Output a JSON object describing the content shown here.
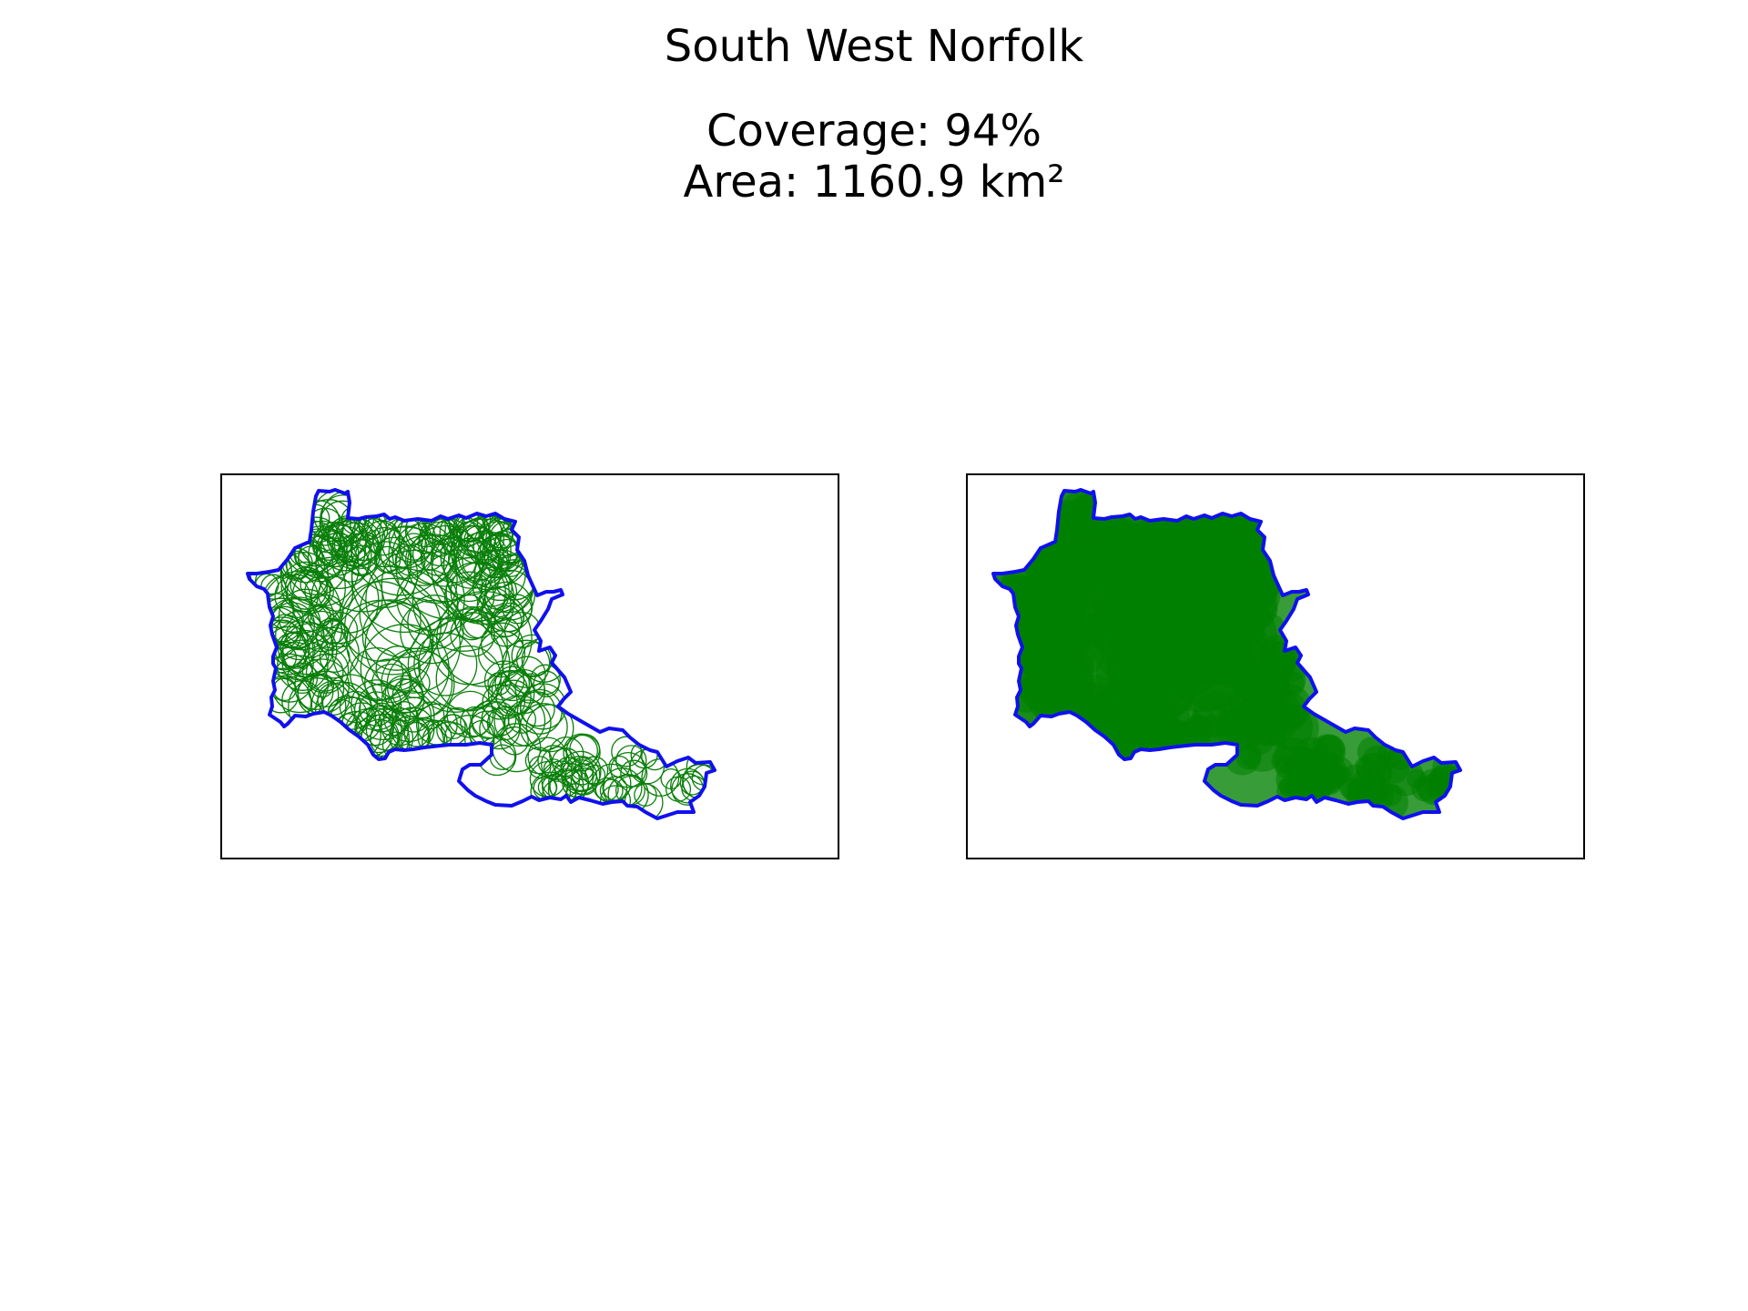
{
  "header": {
    "title": "South West Norfolk",
    "coverage_text": "Coverage: 94%",
    "area_text": "Area: 1160.9 km²"
  },
  "colors": {
    "boundary": "#1010ee",
    "circle": "#0a7f0a",
    "fill": "#008000",
    "frame": "#000000"
  },
  "panels": [
    {
      "id": "outline",
      "style": "outline"
    },
    {
      "id": "filled",
      "style": "filled"
    }
  ]
}
